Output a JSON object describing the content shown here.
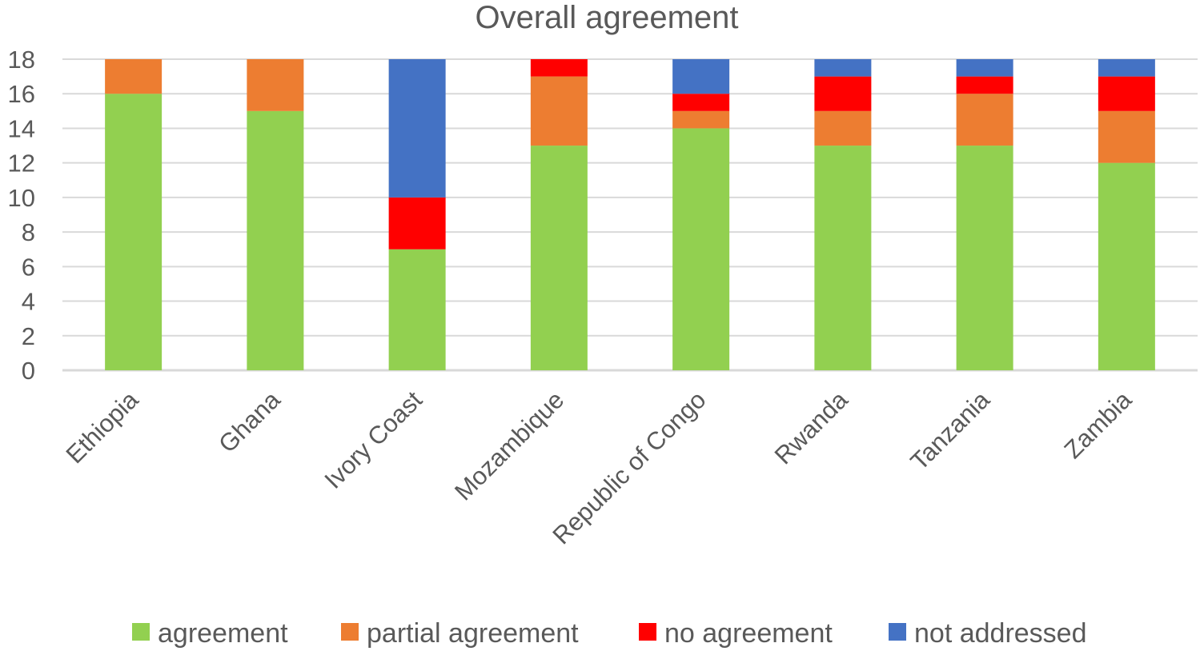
{
  "chart_data": {
    "type": "bar",
    "stacked": true,
    "title": "Overall agreement",
    "xlabel": "",
    "ylabel": "",
    "ylim": [
      0,
      18
    ],
    "ytick_step": 2,
    "yticks": [
      "0",
      "2",
      "4",
      "6",
      "8",
      "10",
      "12",
      "14",
      "16",
      "18"
    ],
    "grid": true,
    "legend_position": "bottom",
    "categories": [
      "Ethiopia",
      "Ghana",
      "Ivory Coast",
      "Mozambique",
      "Republic of Congo",
      "Rwanda",
      "Tanzania",
      "Zambia"
    ],
    "series": [
      {
        "name": "agreement",
        "color": "#92d050",
        "values": [
          16,
          15,
          7,
          13,
          14,
          13,
          13,
          12
        ]
      },
      {
        "name": "partial agreement",
        "color": "#ed7d31",
        "values": [
          2,
          3,
          0,
          4,
          1,
          2,
          3,
          3
        ]
      },
      {
        "name": "no agreement",
        "color": "#ff0000",
        "values": [
          0,
          0,
          3,
          1,
          1,
          2,
          1,
          2
        ]
      },
      {
        "name": "not addressed",
        "color": "#4472c4",
        "values": [
          0,
          0,
          8,
          0,
          2,
          1,
          1,
          1
        ]
      }
    ]
  }
}
